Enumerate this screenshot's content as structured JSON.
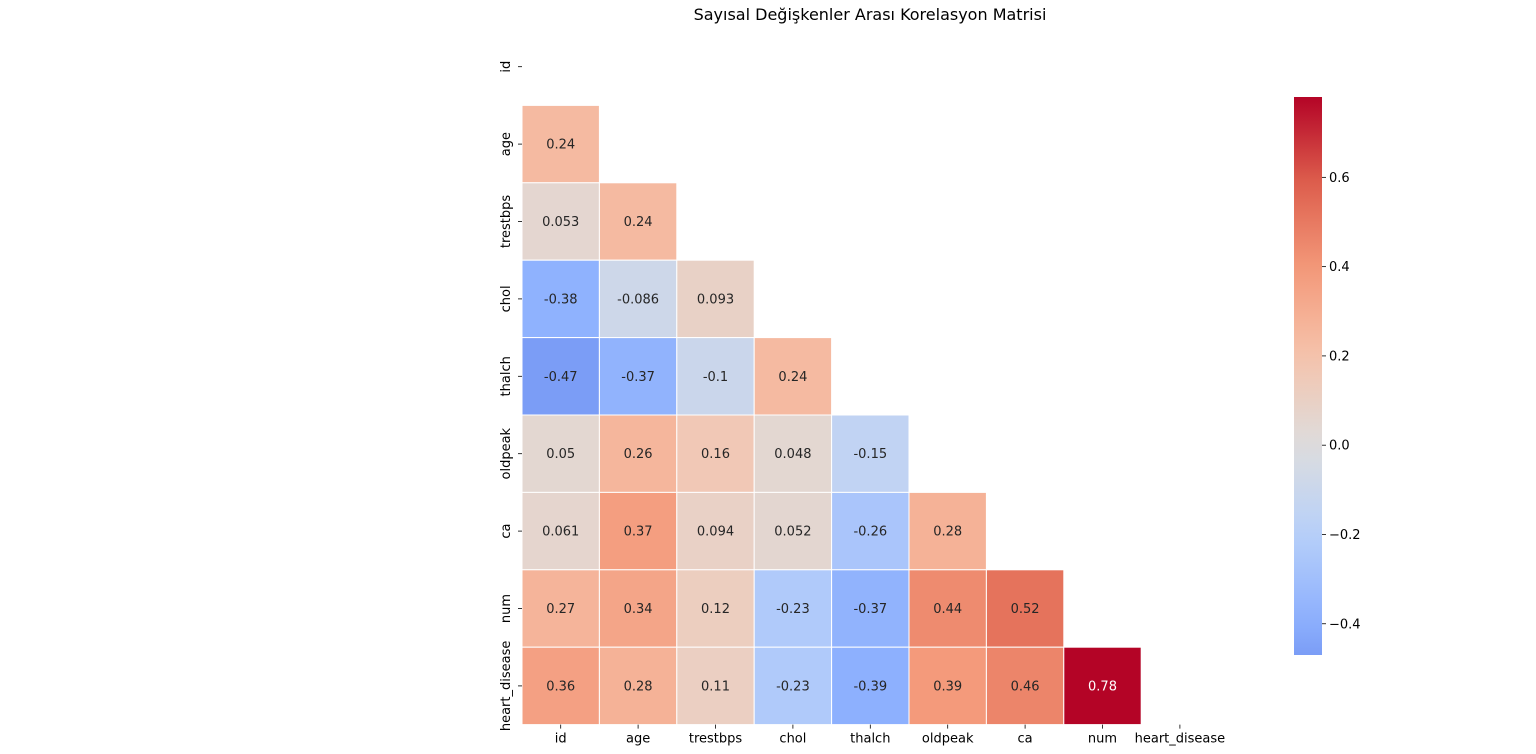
{
  "chart_data": {
    "type": "heatmap",
    "title": "Sayısal Değişkenler Arası Korelasyon Matrisi",
    "xlabel": "",
    "ylabel": "",
    "variables": [
      "id",
      "age",
      "trestbps",
      "chol",
      "thalch",
      "oldpeak",
      "ca",
      "num",
      "heart_disease"
    ],
    "mask": "upper-triangle-including-diagonal",
    "matrix_lower": [
      [],
      [
        0.24
      ],
      [
        0.053,
        0.24
      ],
      [
        -0.38,
        -0.086,
        0.093
      ],
      [
        -0.47,
        -0.37,
        -0.1,
        0.24
      ],
      [
        0.05,
        0.26,
        0.16,
        0.048,
        -0.15
      ],
      [
        0.061,
        0.37,
        0.094,
        0.052,
        -0.26,
        0.28
      ],
      [
        0.27,
        0.34,
        0.12,
        -0.23,
        -0.37,
        0.44,
        0.52
      ],
      [
        0.36,
        0.28,
        0.11,
        -0.23,
        -0.39,
        0.39,
        0.46,
        0.78
      ]
    ],
    "annotated": true,
    "colormap": "coolwarm",
    "center": 0,
    "vmin": -0.47,
    "vmax": 0.78,
    "grid_lines": "white",
    "colorbar": {
      "ticks": [
        -0.4,
        -0.2,
        0.0,
        0.2,
        0.4,
        0.6
      ],
      "tick_labels": [
        "−0.4",
        "−0.2",
        "0.0",
        "0.2",
        "0.4",
        "0.6"
      ],
      "placement": "right"
    }
  }
}
